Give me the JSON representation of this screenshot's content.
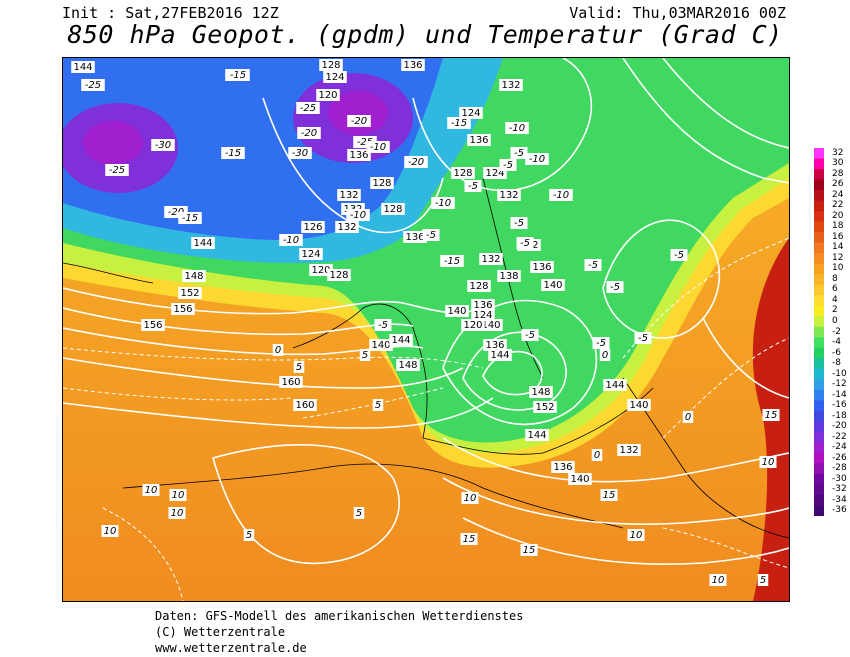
{
  "header": {
    "init": "Init : Sat,27FEB2016 12Z",
    "valid": "Valid: Thu,03MAR2016 00Z",
    "title": "850 hPa Geopot. (gpdm) und Temperatur (Grad C)"
  },
  "legend": {
    "labels": [
      "32",
      "30",
      "28",
      "26",
      "24",
      "22",
      "20",
      "18",
      "16",
      "14",
      "12",
      "10",
      "8",
      "6",
      "4",
      "2",
      "0",
      "-2",
      "-4",
      "-6",
      "-8",
      "-10",
      "-12",
      "-14",
      "-16",
      "-18",
      "-20",
      "-22",
      "-24",
      "-26",
      "-28",
      "-30",
      "-32",
      "-34",
      "-36"
    ],
    "colors": [
      "#ff33ff",
      "#ff00aa",
      "#cc0044",
      "#a0001a",
      "#b8101a",
      "#c82010",
      "#d83010",
      "#e04a10",
      "#e86018",
      "#f07820",
      "#f48c20",
      "#f8a020",
      "#fab428",
      "#fcc830",
      "#fedc30",
      "#f8ec20",
      "#c8f040",
      "#80e850",
      "#40e060",
      "#20d060",
      "#18c0a0",
      "#20b8d0",
      "#30a0e8",
      "#3080f0",
      "#3060f0",
      "#4048e0",
      "#6038e0",
      "#8030d8",
      "#a020d0",
      "#b010c0",
      "#9010b0",
      "#7008a0",
      "#600890",
      "#500880",
      "#400870"
    ]
  },
  "map": {
    "geopotential_labels": [
      "144",
      "128",
      "124",
      "136",
      "120",
      "132",
      "124",
      "136",
      "128",
      "124",
      "132",
      "136",
      "128",
      "132",
      "128",
      "132",
      "132",
      "126",
      "124",
      "120",
      "128",
      "136",
      "132",
      "138",
      "136",
      "140",
      "144",
      "148",
      "152",
      "156",
      "156",
      "140",
      "144",
      "148",
      "160",
      "160",
      "132",
      "136",
      "140",
      "128",
      "136",
      "140",
      "144",
      "148",
      "152",
      "144",
      "136",
      "140",
      "144",
      "140",
      "132",
      "124",
      "120"
    ],
    "temperature_labels": [
      "-25",
      "-15",
      "-25",
      "-30",
      "-25",
      "-20",
      "-30",
      "-20",
      "-25",
      "-15",
      "-10",
      "-15",
      "-20",
      "-15",
      "-10",
      "-5",
      "-10",
      "-15",
      "-10",
      "-20",
      "-15",
      "-10",
      "-5",
      "-5",
      "-10",
      "-5",
      "-5",
      "-5",
      "-5",
      "-5",
      "-5",
      "-5",
      "0",
      "5",
      "5",
      "5",
      "10",
      "10",
      "10",
      "10",
      "5",
      "5",
      "10",
      "15",
      "15",
      "15",
      "10",
      "15",
      "10",
      "5",
      "10",
      "0",
      "0",
      "-10",
      "-5",
      "-5",
      "-5",
      "0"
    ]
  },
  "credits": {
    "line1": "Daten: GFS-Modell des amerikanischen Wetterdienstes",
    "line2": "(C) Wetterzentrale",
    "line3": "www.wetterzentrale.de"
  }
}
